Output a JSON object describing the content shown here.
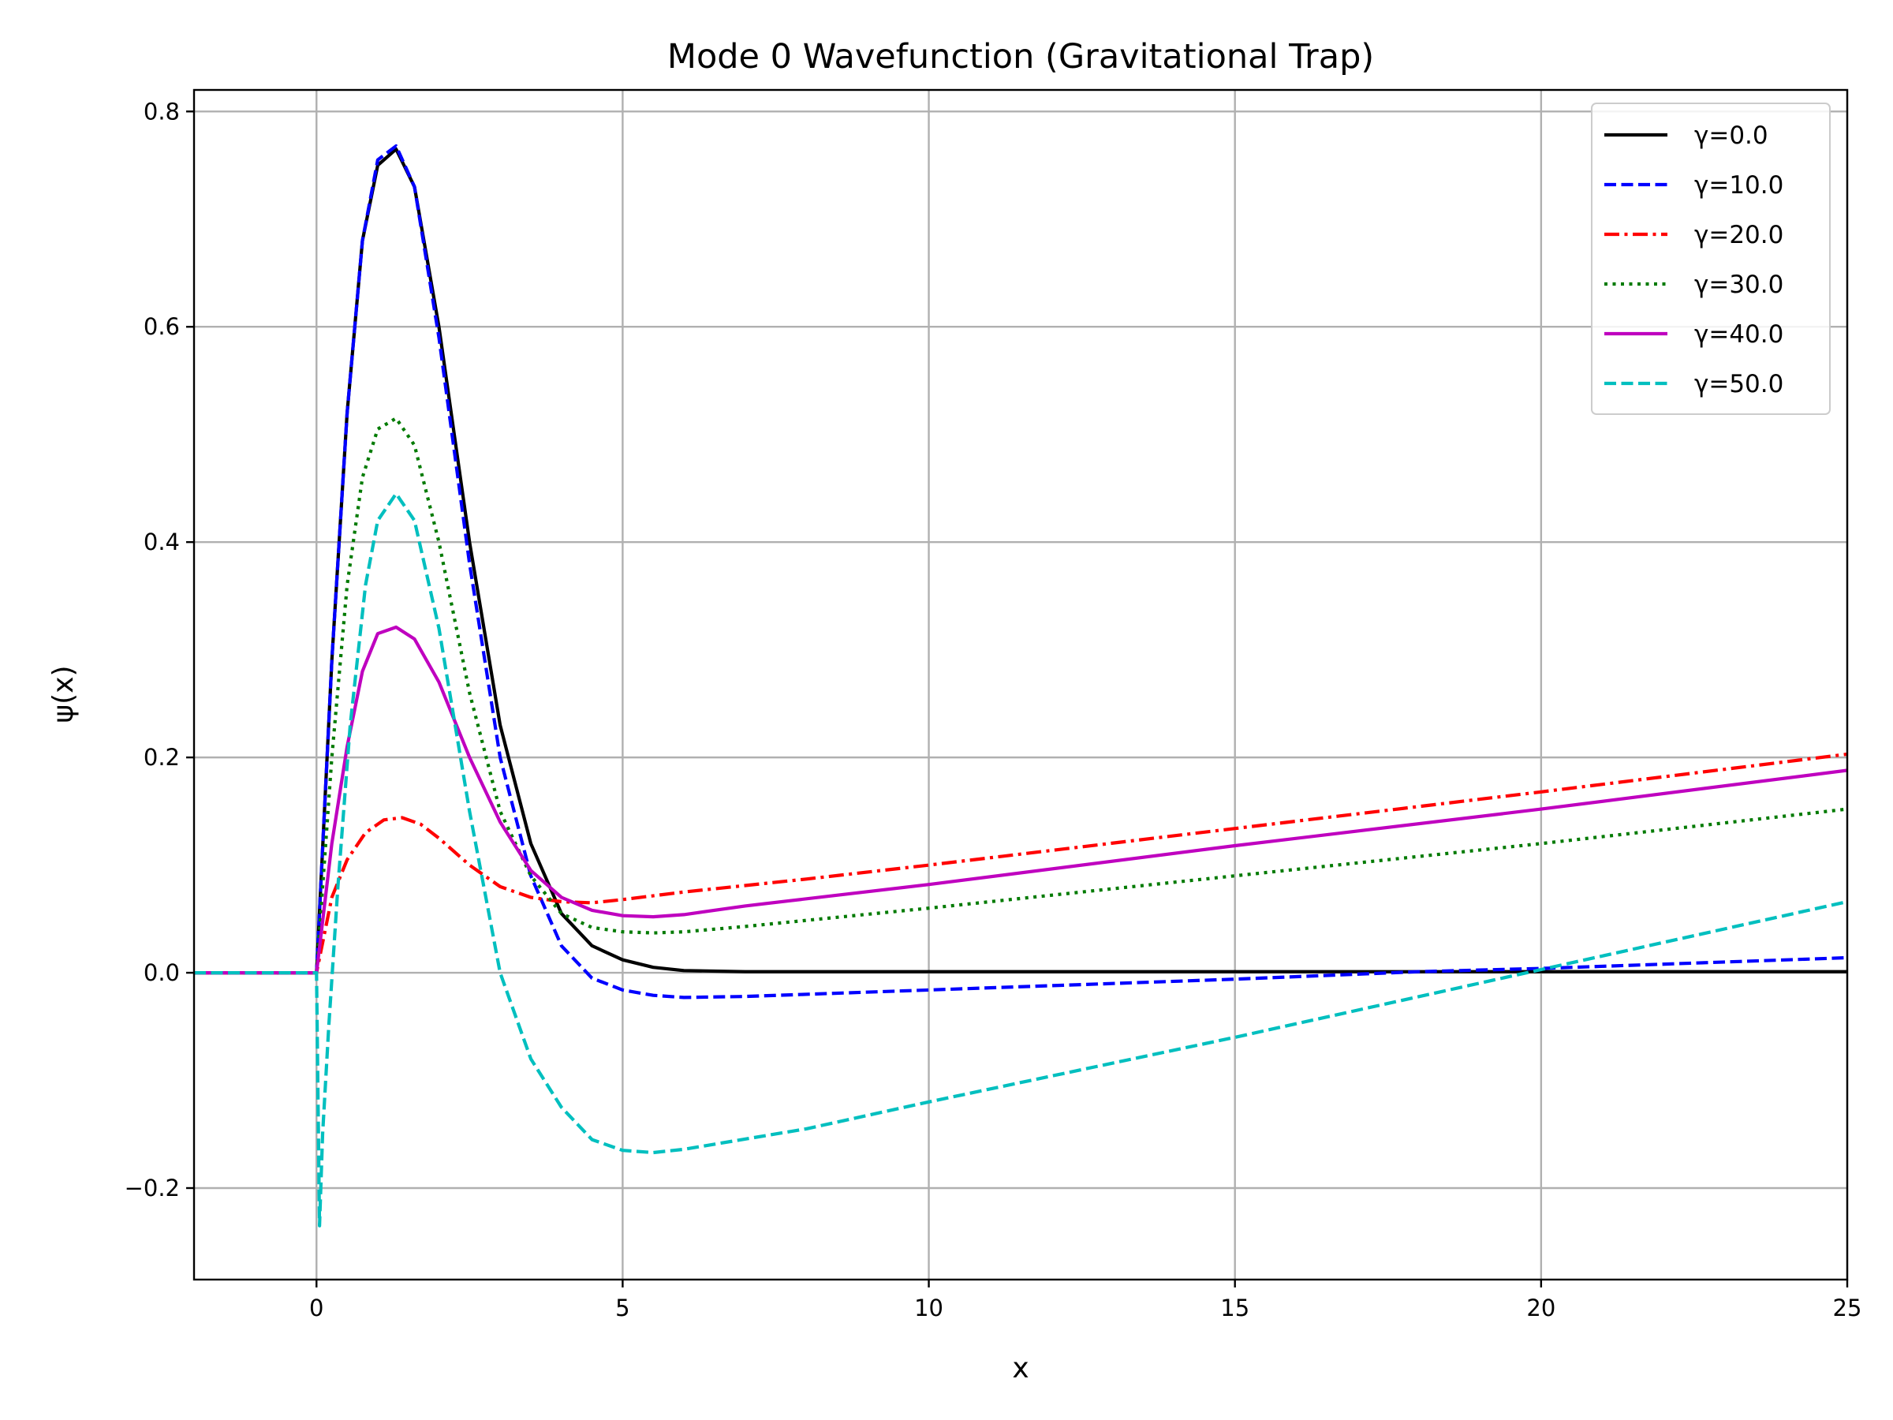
{
  "chart_data": {
    "type": "line",
    "title": "Mode 0 Wavefunction (Gravitational Trap)",
    "xlabel": "x",
    "ylabel": "ψ(x)",
    "xlim": [
      -2,
      25
    ],
    "ylim": [
      -0.285,
      0.82
    ],
    "xticks": [
      0,
      5,
      10,
      15,
      20,
      25
    ],
    "yticks": [
      -0.2,
      0.0,
      0.2,
      0.4,
      0.6,
      0.8
    ],
    "xtick_labels": [
      "0",
      "5",
      "10",
      "15",
      "20",
      "25"
    ],
    "ytick_labels": [
      "−0.2",
      "0.0",
      "0.2",
      "0.4",
      "0.6",
      "0.8"
    ],
    "grid": true,
    "legend_position": "top-right",
    "series": [
      {
        "name": "γ=0.0",
        "color": "#000000",
        "dash": "solid",
        "x": [
          -2,
          0,
          0.25,
          0.5,
          0.75,
          1.0,
          1.3,
          1.6,
          2.0,
          2.5,
          3.0,
          3.5,
          4.0,
          4.5,
          5.0,
          5.5,
          6.0,
          7.0,
          10,
          15,
          20,
          25
        ],
        "y": [
          0,
          0,
          0.29,
          0.52,
          0.68,
          0.75,
          0.765,
          0.73,
          0.6,
          0.4,
          0.23,
          0.12,
          0.055,
          0.025,
          0.012,
          0.005,
          0.002,
          0.001,
          0.001,
          0.001,
          0.001,
          0.001
        ]
      },
      {
        "name": "γ=10.0",
        "color": "#0000ff",
        "dash": "dashed",
        "x": [
          -2,
          0,
          0.25,
          0.5,
          0.75,
          1.0,
          1.3,
          1.6,
          2.0,
          2.5,
          3.0,
          3.5,
          4.0,
          4.5,
          5.0,
          5.5,
          6.0,
          7.0,
          10,
          15,
          18,
          20,
          25
        ],
        "y": [
          0,
          0,
          0.29,
          0.52,
          0.68,
          0.755,
          0.768,
          0.73,
          0.59,
          0.38,
          0.2,
          0.09,
          0.025,
          -0.005,
          -0.016,
          -0.021,
          -0.023,
          -0.022,
          -0.016,
          -0.006,
          0.001,
          0.004,
          0.014
        ]
      },
      {
        "name": "γ=20.0",
        "color": "#ff0000",
        "dash": "dashdot",
        "x": [
          -2,
          0,
          0.25,
          0.5,
          0.8,
          1.1,
          1.4,
          1.7,
          2.0,
          2.5,
          3.0,
          3.5,
          4.0,
          4.5,
          5.0,
          6.0,
          8.0,
          10,
          15,
          20,
          25
        ],
        "y": [
          0,
          0,
          0.07,
          0.105,
          0.13,
          0.142,
          0.144,
          0.138,
          0.125,
          0.1,
          0.08,
          0.07,
          0.066,
          0.065,
          0.068,
          0.075,
          0.087,
          0.1,
          0.134,
          0.168,
          0.203
        ]
      },
      {
        "name": "γ=30.0",
        "color": "#007a00",
        "dash": "dotted",
        "x": [
          -2,
          0,
          0.25,
          0.5,
          0.75,
          1.0,
          1.3,
          1.6,
          2.0,
          2.5,
          3.0,
          3.5,
          4.0,
          4.5,
          5.0,
          5.5,
          6.0,
          7.0,
          10,
          15,
          20,
          25
        ],
        "y": [
          0,
          0,
          0.2,
          0.36,
          0.46,
          0.505,
          0.515,
          0.49,
          0.4,
          0.26,
          0.15,
          0.09,
          0.055,
          0.042,
          0.038,
          0.037,
          0.038,
          0.043,
          0.06,
          0.09,
          0.12,
          0.152
        ]
      },
      {
        "name": "γ=40.0",
        "color": "#bf00bf",
        "dash": "solid",
        "x": [
          -2,
          0,
          0.25,
          0.5,
          0.75,
          1.0,
          1.3,
          1.6,
          2.0,
          2.5,
          3.0,
          3.5,
          4.0,
          4.5,
          5.0,
          5.5,
          6.0,
          7.0,
          10,
          15,
          20,
          25
        ],
        "y": [
          0,
          0,
          0.12,
          0.21,
          0.28,
          0.315,
          0.321,
          0.31,
          0.27,
          0.2,
          0.14,
          0.095,
          0.07,
          0.058,
          0.053,
          0.052,
          0.054,
          0.062,
          0.082,
          0.118,
          0.152,
          0.188
        ]
      },
      {
        "name": "γ=50.0",
        "color": "#00bfbf",
        "dash": "dashed",
        "x": [
          -2,
          0,
          0.05,
          0.1,
          0.2,
          0.35,
          0.55,
          0.8,
          1.0,
          1.3,
          1.6,
          2.0,
          2.5,
          3.0,
          3.5,
          4.0,
          4.5,
          5.0,
          5.5,
          6.0,
          8.0,
          10,
          15,
          20,
          25
        ],
        "y": [
          0,
          0,
          -0.235,
          -0.15,
          -0.05,
          0.08,
          0.23,
          0.36,
          0.42,
          0.445,
          0.42,
          0.32,
          0.15,
          0.0,
          -0.08,
          -0.125,
          -0.155,
          -0.165,
          -0.167,
          -0.164,
          -0.145,
          -0.12,
          -0.06,
          0.003,
          0.066
        ]
      }
    ]
  }
}
